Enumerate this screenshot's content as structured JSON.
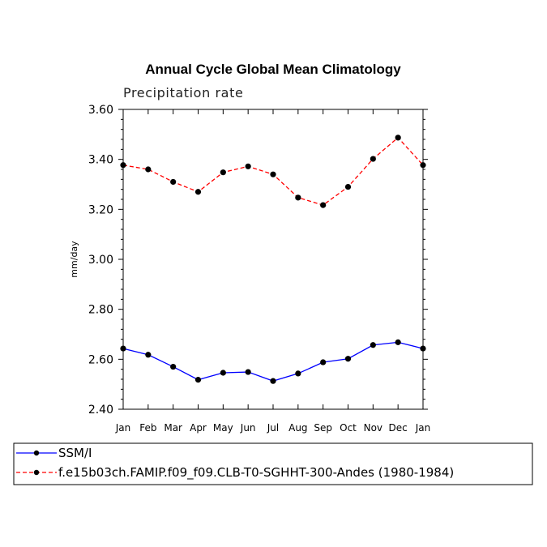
{
  "chart_data": {
    "type": "line",
    "title": "Annual Cycle Global Mean Climatology",
    "subtitle": "Precipitation rate",
    "ylabel": "mm/day",
    "xlabel": "",
    "ylim": [
      2.4,
      3.6
    ],
    "yticks": [
      "2.40",
      "2.60",
      "2.80",
      "3.00",
      "3.20",
      "3.40",
      "3.60"
    ],
    "categories": [
      "Jan",
      "Feb",
      "Mar",
      "Apr",
      "May",
      "Jun",
      "Jul",
      "Aug",
      "Sep",
      "Oct",
      "Nov",
      "Dec",
      "Jan"
    ],
    "series": [
      {
        "name": "SSM/I",
        "color": "#0000ff",
        "style": "solid",
        "values": [
          2.643,
          2.618,
          2.57,
          2.518,
          2.546,
          2.549,
          2.513,
          2.543,
          2.588,
          2.602,
          2.657,
          2.668,
          2.643
        ]
      },
      {
        "name": "f.e15b03ch.FAMIP.f09_f09.CLB-T0-SGHHT-300-Andes (1980-1984)",
        "color": "#ff0000",
        "style": "dashed",
        "values": [
          3.377,
          3.36,
          3.31,
          3.27,
          3.348,
          3.372,
          3.34,
          3.247,
          3.217,
          3.29,
          3.402,
          3.487,
          3.377
        ]
      }
    ],
    "legend_position": "bottom-left"
  }
}
